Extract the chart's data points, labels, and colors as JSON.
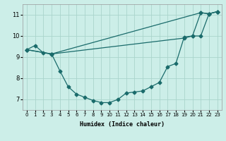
{
  "xlabel": "Humidex (Indice chaleur)",
  "background_color": "#cceee8",
  "grid_color": "#aad4cc",
  "line_color": "#1a6b6b",
  "xlim": [
    -0.5,
    23.5
  ],
  "ylim": [
    6.5,
    11.5
  ],
  "yticks": [
    7,
    8,
    9,
    10,
    11
  ],
  "xticks": [
    0,
    1,
    2,
    3,
    4,
    5,
    6,
    7,
    8,
    9,
    10,
    11,
    12,
    13,
    14,
    15,
    16,
    17,
    18,
    19,
    20,
    21,
    22,
    23
  ],
  "series1_x": [
    0,
    1,
    2,
    3,
    4,
    5,
    6,
    7,
    8,
    9,
    10,
    11,
    12,
    13,
    14,
    15,
    16,
    17,
    18,
    19,
    20,
    21,
    22,
    23
  ],
  "series1_y": [
    9.35,
    9.55,
    9.2,
    9.15,
    8.35,
    7.6,
    7.25,
    7.1,
    6.95,
    6.85,
    6.85,
    7.0,
    7.3,
    7.35,
    7.4,
    7.6,
    7.8,
    8.55,
    8.7,
    9.95,
    10.0,
    11.1,
    11.05,
    11.15
  ],
  "series2_x": [
    0,
    3,
    21,
    22,
    23
  ],
  "series2_y": [
    9.35,
    9.15,
    11.1,
    11.05,
    11.15
  ],
  "series3_x": [
    0,
    3,
    19,
    20,
    21,
    22,
    23
  ],
  "series3_y": [
    9.35,
    9.15,
    9.9,
    10.0,
    10.0,
    11.05,
    11.15
  ],
  "marker": "D",
  "markersize": 2.5,
  "linewidth": 0.9
}
